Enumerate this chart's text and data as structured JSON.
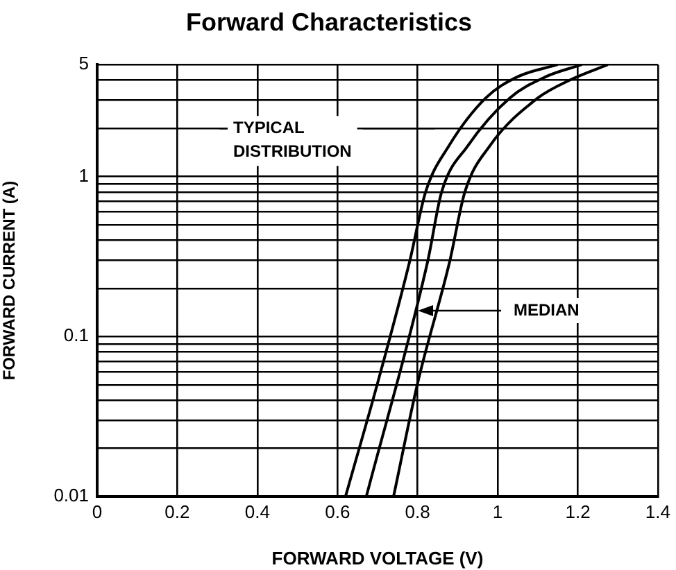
{
  "chart_data": {
    "type": "line",
    "title": "Forward Characteristics",
    "xlabel": "FORWARD VOLTAGE (V)",
    "ylabel": "FORWARD CURRENT (A)",
    "series": [
      {
        "color": "#000000",
        "x": [
          0.62,
          0.7,
          0.78,
          0.82,
          0.878,
          0.97,
          1.05,
          1.15
        ],
        "values": [
          0.01,
          0.051,
          0.293,
          0.8,
          1.55,
          3.09,
          4.2,
          5
        ]
      },
      {
        "color": "#000000",
        "x": [
          0.672,
          0.825,
          0.86,
          0.925,
          1.03,
          1.12,
          1.21
        ],
        "values": [
          0.01,
          0.293,
          0.8,
          1.55,
          3.09,
          4.2,
          5
        ]
      },
      {
        "color": "#000000",
        "x": [
          0.74,
          0.8,
          0.88,
          0.918,
          0.98,
          1.1,
          1.18,
          1.275
        ],
        "values": [
          0.01,
          0.051,
          0.293,
          0.8,
          1.55,
          3.09,
          4.0,
          5
        ]
      }
    ],
    "xlim": [
      0,
      1.4
    ],
    "xticks": [
      0,
      0.2,
      0.4,
      0.6,
      0.8,
      1,
      1.2,
      1.4
    ],
    "ylim": [
      0.01,
      5
    ],
    "yticks": [
      0.01,
      {
        "value": 0.02,
        "label": null
      },
      {
        "value": 0.03,
        "label": null
      },
      {
        "value": 0.04,
        "label": null
      },
      {
        "value": 0.05,
        "label": null
      },
      {
        "value": 0.06,
        "label": null
      },
      {
        "value": 0.07,
        "label": null
      },
      {
        "value": 0.08,
        "label": null
      },
      {
        "value": 0.09,
        "label": null
      },
      0.1,
      {
        "value": 0.2,
        "label": null
      },
      {
        "value": 0.3,
        "label": null
      },
      {
        "value": 0.4,
        "label": null
      },
      {
        "value": 0.5,
        "label": null
      },
      {
        "value": 0.6,
        "label": null
      },
      {
        "value": 0.7,
        "label": null
      },
      {
        "value": 0.8,
        "label": null
      },
      {
        "value": 0.9,
        "label": null
      },
      1,
      {
        "value": 2,
        "label": null
      },
      {
        "value": 3,
        "label": null
      },
      {
        "value": 4,
        "label": null
      },
      5
    ],
    "log": "y",
    "grid": true,
    "legend": false,
    "marker": "none",
    "line_style": "solid",
    "annotations": [
      "TYPICAL DISTRIBUTION",
      "MEDIAN"
    ]
  }
}
